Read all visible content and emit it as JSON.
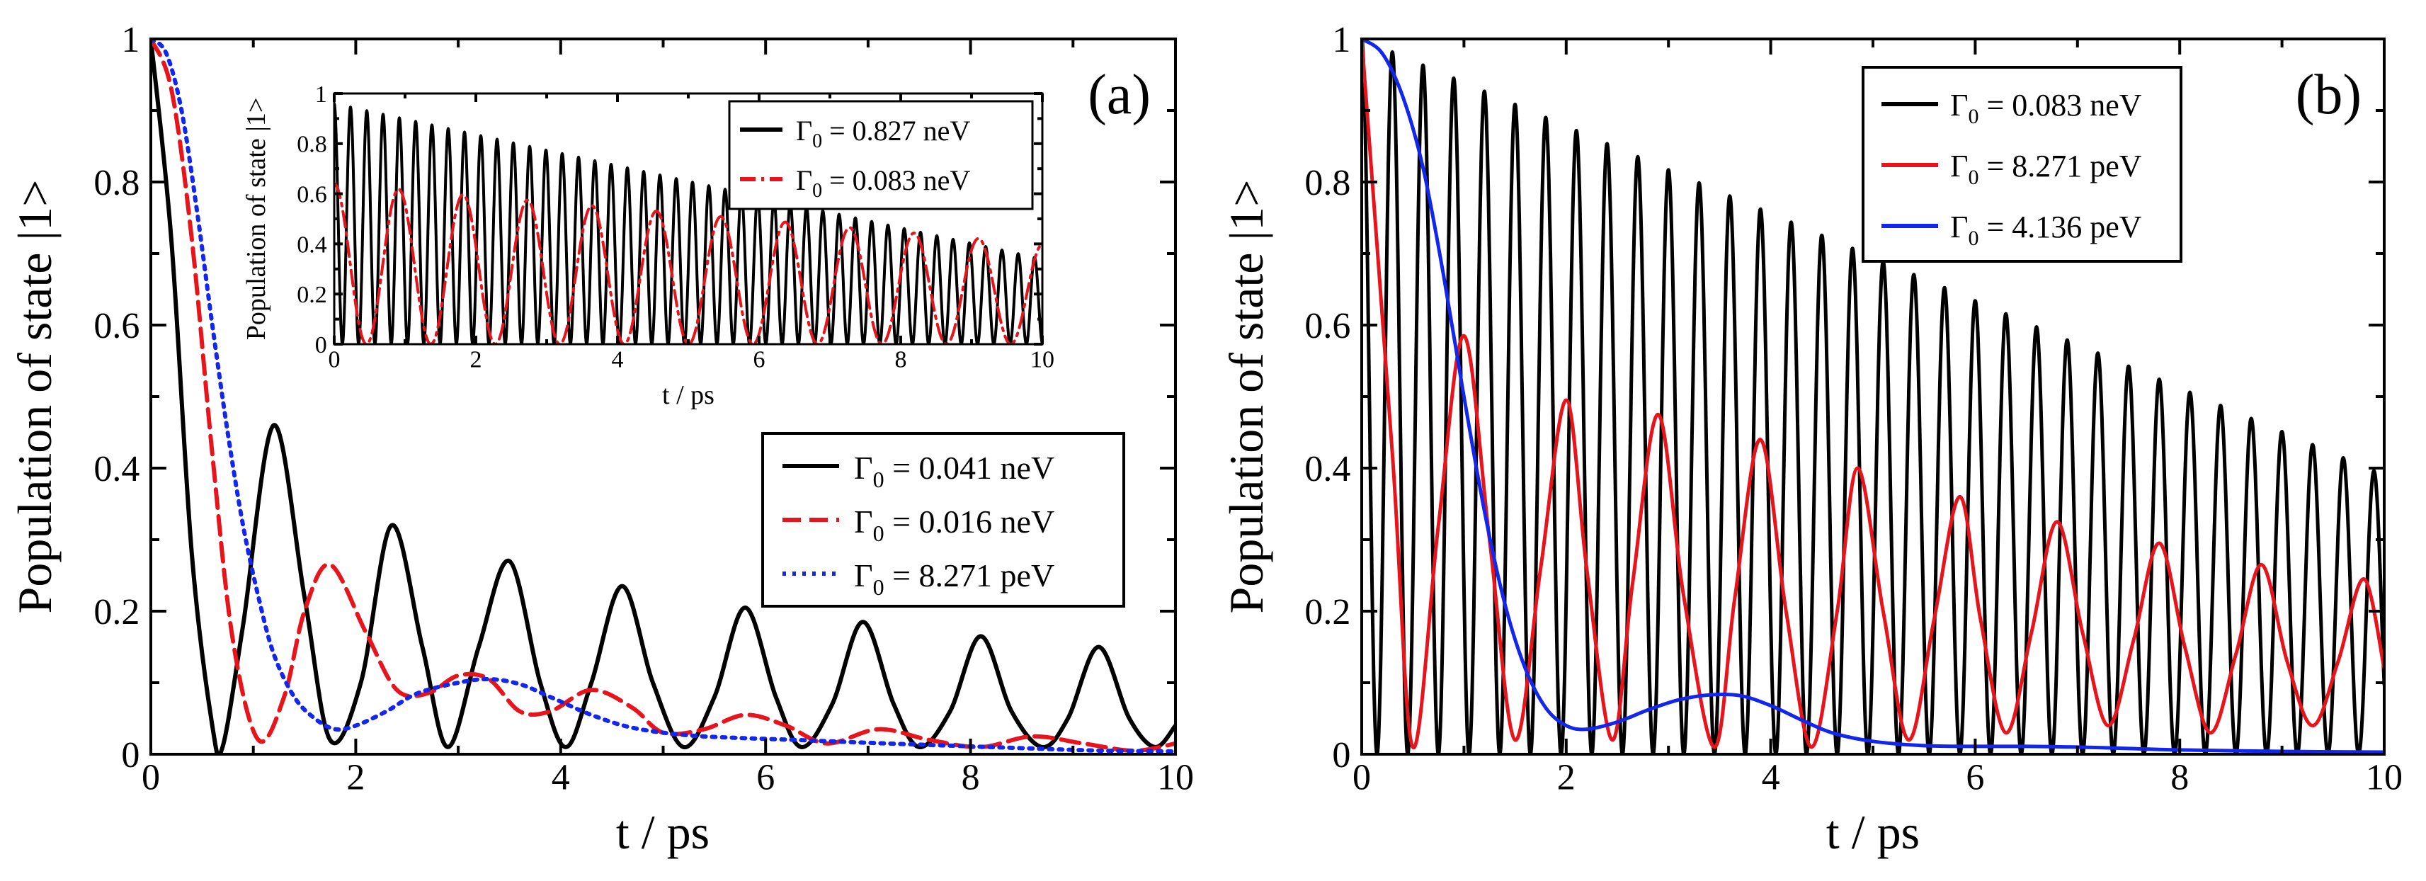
{
  "chart_data": [
    {
      "type": "line",
      "panel_label": "(a)",
      "xlabel": "t / ps",
      "ylabel": "Population of state |1>",
      "xlim": [
        0,
        10
      ],
      "ylim": [
        0,
        1
      ],
      "xticks": [
        "0",
        "2",
        "4",
        "6",
        "8",
        "10"
      ],
      "yticks": [
        "0",
        "0.2",
        "0.4",
        "0.6",
        "0.8",
        "1"
      ],
      "legend_position": "right",
      "series": [
        {
          "name": "Γ0 = 0.041 neV",
          "label_prefix": "Γ",
          "label_sub": "0",
          "label_rest": " = 0.041 neV",
          "color": "#000000",
          "style": "solid",
          "x": [
            0,
            0.2,
            0.4,
            0.6,
            0.7,
            0.9,
            1.2,
            1.5,
            1.75,
            2.05,
            2.35,
            2.65,
            2.9,
            3.2,
            3.5,
            3.8,
            4.05,
            4.3,
            4.6,
            4.9,
            5.2,
            5.5,
            5.8,
            6.1,
            6.35,
            6.65,
            6.95,
            7.25,
            7.5,
            7.8,
            8.1,
            8.4,
            8.7,
            8.95,
            9.25,
            9.55,
            9.8,
            10
          ],
          "y": [
            1,
            0.72,
            0.28,
            0.04,
            0.01,
            0.18,
            0.46,
            0.22,
            0.02,
            0.1,
            0.32,
            0.15,
            0.01,
            0.15,
            0.27,
            0.1,
            0.01,
            0.1,
            0.235,
            0.1,
            0.01,
            0.08,
            0.205,
            0.08,
            0.01,
            0.07,
            0.185,
            0.07,
            0.01,
            0.06,
            0.165,
            0.06,
            0.01,
            0.05,
            0.15,
            0.05,
            0.01,
            0.04
          ]
        },
        {
          "name": "Γ0 = 0.016 neV",
          "label_prefix": "Γ",
          "label_sub": "0",
          "label_rest": " = 0.016 neV",
          "color": "#e8141c",
          "style": "dashed",
          "x": [
            0,
            0.2,
            0.4,
            0.6,
            0.8,
            1.05,
            1.3,
            1.5,
            1.75,
            2.1,
            2.4,
            2.7,
            3,
            3.3,
            3.6,
            3.9,
            4.3,
            4.7,
            5,
            5.4,
            5.8,
            6.2,
            6.6,
            7.1,
            7.6,
            8.1,
            8.6,
            9.1,
            9.6,
            10
          ],
          "y": [
            1,
            0.93,
            0.72,
            0.42,
            0.16,
            0.02,
            0.08,
            0.2,
            0.265,
            0.17,
            0.09,
            0.085,
            0.11,
            0.105,
            0.06,
            0.06,
            0.09,
            0.065,
            0.03,
            0.035,
            0.055,
            0.04,
            0.015,
            0.035,
            0.02,
            0.01,
            0.025,
            0.015,
            0.005,
            0.015
          ]
        },
        {
          "name": "Γ0 = 8.271 peV",
          "label_prefix": "Γ",
          "label_sub": "0",
          "label_rest": " = 8.271 peV",
          "color": "#1226ee",
          "style": "dotted",
          "x": [
            0,
            0.15,
            0.3,
            0.45,
            0.6,
            0.75,
            0.9,
            1.05,
            1.2,
            1.4,
            1.6,
            1.8,
            2,
            2.3,
            2.6,
            3,
            3.3,
            3.6,
            3.9,
            4.3,
            4.7,
            5.2,
            5.7,
            6.3,
            7,
            7.8,
            8.6,
            9.3,
            10
          ],
          "y": [
            1,
            0.98,
            0.9,
            0.76,
            0.6,
            0.45,
            0.32,
            0.22,
            0.14,
            0.08,
            0.05,
            0.035,
            0.04,
            0.06,
            0.085,
            0.1,
            0.105,
            0.098,
            0.08,
            0.055,
            0.037,
            0.027,
            0.023,
            0.02,
            0.016,
            0.012,
            0.008,
            0.005,
            0.004
          ]
        }
      ],
      "inset": {
        "type": "line",
        "xlabel": "t / ps",
        "ylabel": "Population of state |1>",
        "xlim": [
          0,
          10
        ],
        "ylim": [
          0,
          1
        ],
        "xticks": [
          "0",
          "2",
          "4",
          "6",
          "8",
          "10"
        ],
        "yticks": [
          "0",
          "0.2",
          "0.4",
          "0.6",
          "0.8",
          "1"
        ],
        "legend_position": "top-right",
        "series": [
          {
            "name": "Γ0 = 0.827 neV",
            "label_prefix": "Γ",
            "label_sub": "0",
            "label_rest": " = 0.827 neV",
            "color": "#000000",
            "style": "solid",
            "period_ps": 0.23,
            "envelope_start": 0.96,
            "envelope_end": 0.34
          },
          {
            "name": "Γ0 = 0.083 neV",
            "label_prefix": "Γ",
            "label_sub": "0",
            "label_rest": " = 0.083 neV",
            "color": "#e8141c",
            "style": "dashdot",
            "period_ps": 0.91,
            "envelope_start": 0.64,
            "envelope_end": 0.4
          }
        ]
      }
    },
    {
      "type": "line",
      "panel_label": "(b)",
      "xlabel": "t / ps",
      "ylabel": "Population of state |1>",
      "xlim": [
        0,
        10
      ],
      "ylim": [
        0,
        1
      ],
      "xticks": [
        "0",
        "2",
        "4",
        "6",
        "8",
        "10"
      ],
      "yticks": [
        "0",
        "0.2",
        "0.4",
        "0.6",
        "0.8",
        "1"
      ],
      "legend_position": "top-center",
      "series": [
        {
          "name": "Γ0 = 0.083 neV",
          "label_prefix": "Γ",
          "label_sub": "0",
          "label_rest": " = 0.083 neV",
          "color": "#000000",
          "style": "solid",
          "period_ps": 0.3,
          "envelope_start": 1.0,
          "envelope_end": 0.39
        },
        {
          "name": "Γ0 = 8.271 peV",
          "label_prefix": "Γ",
          "label_sub": "0",
          "label_rest": " = 8.271 peV",
          "color": "#e8141c",
          "style": "solid",
          "x": [
            0,
            0.3,
            0.5,
            0.75,
            1,
            1.25,
            1.5,
            1.75,
            2,
            2.2,
            2.45,
            2.65,
            2.9,
            3.15,
            3.45,
            3.65,
            3.9,
            4.15,
            4.4,
            4.65,
            4.85,
            5.1,
            5.35,
            5.6,
            5.85,
            6.05,
            6.3,
            6.55,
            6.8,
            7.05,
            7.3,
            7.55,
            7.8,
            8.05,
            8.3,
            8.55,
            8.8,
            9.05,
            9.3,
            9.55,
            9.8,
            10
          ],
          "y": [
            1,
            0.42,
            0.01,
            0.32,
            0.585,
            0.3,
            0.02,
            0.26,
            0.495,
            0.26,
            0.02,
            0.24,
            0.475,
            0.22,
            0.01,
            0.22,
            0.44,
            0.2,
            0.01,
            0.2,
            0.4,
            0.2,
            0.02,
            0.19,
            0.36,
            0.19,
            0.03,
            0.17,
            0.325,
            0.17,
            0.04,
            0.16,
            0.295,
            0.15,
            0.03,
            0.14,
            0.265,
            0.13,
            0.04,
            0.13,
            0.245,
            0.12
          ]
        },
        {
          "name": "Γ0 = 4.136 peV",
          "label_prefix": "Γ",
          "label_sub": "0",
          "label_rest": " = 4.136 peV",
          "color": "#1226ee",
          "style": "solid",
          "x": [
            0,
            0.2,
            0.4,
            0.6,
            0.8,
            1,
            1.2,
            1.4,
            1.6,
            1.8,
            2,
            2.2,
            2.5,
            2.8,
            3.1,
            3.4,
            3.7,
            4,
            4.3,
            4.6,
            5,
            5.5,
            6,
            6.5,
            7,
            7.5,
            8,
            9,
            10
          ],
          "y": [
            1,
            0.98,
            0.92,
            0.82,
            0.67,
            0.5,
            0.34,
            0.21,
            0.12,
            0.065,
            0.04,
            0.035,
            0.045,
            0.062,
            0.076,
            0.083,
            0.082,
            0.068,
            0.048,
            0.03,
            0.018,
            0.012,
            0.011,
            0.011,
            0.01,
            0.008,
            0.006,
            0.004,
            0.003
          ]
        }
      ]
    }
  ]
}
